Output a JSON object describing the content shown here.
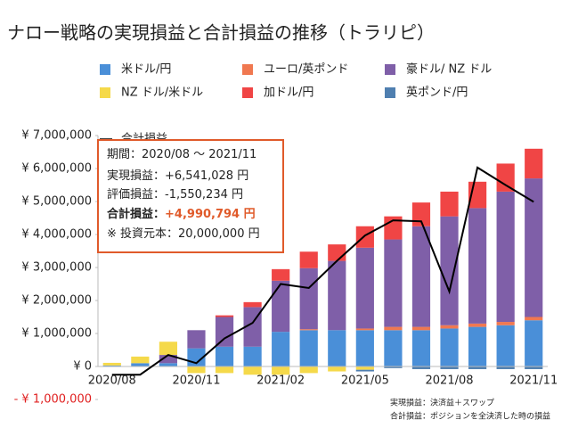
{
  "chart_data": {
    "type": "bar",
    "title": "ナロー戦略の実現損益と合計損益の推移（トラリピ）",
    "categories": [
      "2020/08",
      null,
      null,
      "2020/11",
      null,
      null,
      "2021/02",
      null,
      null,
      "2021/05",
      null,
      null,
      "2021/08",
      null,
      null,
      "2021/11"
    ],
    "series": [
      {
        "name": "米ドル/円",
        "color": "#4a8fd8",
        "values": [
          30000,
          100000,
          100000,
          550000,
          600000,
          600000,
          1050000,
          1100000,
          1100000,
          1100000,
          1100000,
          1100000,
          1150000,
          1200000,
          1250000,
          1400000
        ]
      },
      {
        "name": "ユーロ/英ポンド",
        "color": "#f07850",
        "values": [
          0,
          0,
          0,
          0,
          0,
          0,
          0,
          30000,
          0,
          50000,
          100000,
          100000,
          100000,
          100000,
          100000,
          100000
        ]
      },
      {
        "name": "豪ドル/ NZ ドル",
        "color": "#7f5fa8",
        "values": [
          0,
          0,
          250000,
          550000,
          900000,
          1200000,
          1550000,
          1850000,
          2100000,
          2450000,
          2650000,
          3050000,
          3300000,
          3500000,
          3950000,
          4200000
        ]
      },
      {
        "name": "NZ ドル/米ドル",
        "color": "#f5d94a",
        "values": [
          80000,
          200000,
          400000,
          -200000,
          -200000,
          -250000,
          -250000,
          -200000,
          -150000,
          -100000,
          0,
          0,
          0,
          0,
          0,
          0
        ]
      },
      {
        "name": "加ドル/円",
        "color": "#f04545",
        "values": [
          0,
          0,
          0,
          0,
          50000,
          150000,
          350000,
          500000,
          500000,
          650000,
          700000,
          720000,
          750000,
          800000,
          850000,
          900000
        ]
      },
      {
        "name": "英ポンド/円",
        "color": "#4f7fb0",
        "values": [
          0,
          0,
          0,
          0,
          0,
          0,
          0,
          0,
          0,
          -50000,
          -50000,
          -80000,
          -80000,
          -80000,
          -80000,
          -80000
        ]
      },
      {
        "name": "合計損益",
        "type": "line",
        "color": "#000000",
        "values": [
          -250000,
          -250000,
          350000,
          100000,
          850000,
          1320000,
          2500000,
          2380000,
          3200000,
          3970000,
          4430000,
          4400000,
          2270000,
          6030000,
          5500000,
          4990000
        ]
      }
    ],
    "ylim": [
      -1000000,
      7000000
    ],
    "yticks": [
      {
        "value": -1000000,
        "label": "- ¥ 1,000,000"
      },
      {
        "value": 0,
        "label": "¥ 0"
      },
      {
        "value": 1000000,
        "label": "¥ 1,000,000"
      },
      {
        "value": 2000000,
        "label": "¥ 2,000,000"
      },
      {
        "value": 3000000,
        "label": "¥ 3,000,000"
      },
      {
        "value": 4000000,
        "label": "¥ 4,000,000"
      },
      {
        "value": 5000000,
        "label": "¥ 5,000,000"
      },
      {
        "value": 6000000,
        "label": "¥ 6,000,000"
      },
      {
        "value": 7000000,
        "label": "¥ 7,000,000"
      }
    ],
    "annotation_box": [
      [
        "期間：",
        "2020/08 ～ 2021/11"
      ],
      [
        "実現損益：",
        "+6,541,028 円"
      ],
      [
        "評価損益：",
        "-1,550,234 円"
      ],
      [
        "合計損益：",
        "+4,990,794 円"
      ],
      [
        "※ 投資元本：",
        "20,000,000 円"
      ]
    ],
    "footnotes": [
      "実現損益：決済益＋スワップ",
      "合計損益：ポジションを全決済した時の損益"
    ]
  }
}
